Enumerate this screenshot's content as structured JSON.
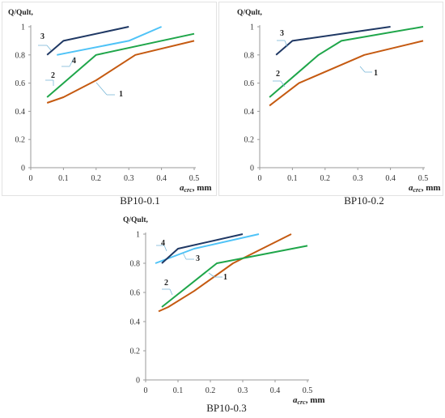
{
  "chart_data": [
    {
      "type": "line",
      "title": "BP10-0.1",
      "ylabel": "Q/Qult,",
      "xlabel_main": "a",
      "xlabel_sub": "crc",
      "xlabel_unit": ", mm",
      "xlim": [
        0,
        0.5
      ],
      "ylim": [
        0,
        1
      ],
      "x_ticks": [
        "0",
        "0.1",
        "0.2",
        "0.3",
        "0.4",
        "0.5"
      ],
      "y_ticks": [
        "0",
        "0.2",
        "0.4",
        "0.6",
        "0.8",
        "1"
      ],
      "grid": false,
      "series": [
        {
          "label": "1",
          "color": "#c55a11",
          "x": [
            0.05,
            0.1,
            0.2,
            0.32,
            0.5
          ],
          "y": [
            0.46,
            0.5,
            0.62,
            0.8,
            0.9
          ]
        },
        {
          "label": "2",
          "color": "#1fa64a",
          "x": [
            0.05,
            0.2,
            0.5
          ],
          "y": [
            0.5,
            0.8,
            0.95
          ]
        },
        {
          "label": "3",
          "color": "#1f3864",
          "x": [
            0.05,
            0.1,
            0.3
          ],
          "y": [
            0.8,
            0.9,
            1.0
          ]
        },
        {
          "label": "4",
          "color": "#4fc3f7",
          "x": [
            0.08,
            0.3,
            0.4
          ],
          "y": [
            0.8,
            0.9,
            1.0
          ]
        }
      ]
    },
    {
      "type": "line",
      "title": "BP10-0.2",
      "ylabel": "Q/Qult,",
      "xlabel_main": "a",
      "xlabel_sub": "crc",
      "xlabel_unit": ", mm",
      "xlim": [
        0,
        0.5
      ],
      "ylim": [
        0,
        1
      ],
      "x_ticks": [
        "0",
        "0.1",
        "0.2",
        "0.3",
        "0.4",
        "0.5"
      ],
      "y_ticks": [
        "0",
        "0.2",
        "0.4",
        "0.6",
        "0.8",
        "1"
      ],
      "grid": false,
      "series": [
        {
          "label": "1",
          "color": "#c55a11",
          "x": [
            0.03,
            0.12,
            0.32,
            0.5
          ],
          "y": [
            0.44,
            0.6,
            0.8,
            0.9
          ]
        },
        {
          "label": "2",
          "color": "#1fa64a",
          "x": [
            0.03,
            0.18,
            0.25,
            0.5
          ],
          "y": [
            0.5,
            0.8,
            0.9,
            1.0
          ]
        },
        {
          "label": "3",
          "color": "#1f3864",
          "x": [
            0.05,
            0.1,
            0.4
          ],
          "y": [
            0.8,
            0.9,
            1.0
          ]
        }
      ]
    },
    {
      "type": "line",
      "title": "BP10-0.3",
      "ylabel": "Q/Qult,",
      "xlabel_main": "a",
      "xlabel_sub": "crc",
      "xlabel_unit": ", mm",
      "xlim": [
        0,
        0.5
      ],
      "ylim": [
        0,
        1
      ],
      "x_ticks": [
        "0",
        "0.1",
        "0.2",
        "0.3",
        "0.4",
        "0.5"
      ],
      "y_ticks": [
        "0",
        "0.2",
        "0.4",
        "0.6",
        "0.8",
        "1"
      ],
      "grid": false,
      "series": [
        {
          "label": "1",
          "color": "#c55a11",
          "x": [
            0.04,
            0.07,
            0.15,
            0.27,
            0.36,
            0.45
          ],
          "y": [
            0.47,
            0.5,
            0.61,
            0.8,
            0.9,
            1.0
          ]
        },
        {
          "label": "2",
          "color": "#1fa64a",
          "x": [
            0.05,
            0.22,
            0.5
          ],
          "y": [
            0.5,
            0.8,
            0.92
          ]
        },
        {
          "label": "3",
          "color": "#4fc3f7",
          "x": [
            0.03,
            0.15,
            0.35
          ],
          "y": [
            0.8,
            0.9,
            1.0
          ]
        },
        {
          "label": "4",
          "color": "#1f3864",
          "x": [
            0.05,
            0.1,
            0.3
          ],
          "y": [
            0.8,
            0.9,
            1.0
          ]
        }
      ]
    }
  ]
}
